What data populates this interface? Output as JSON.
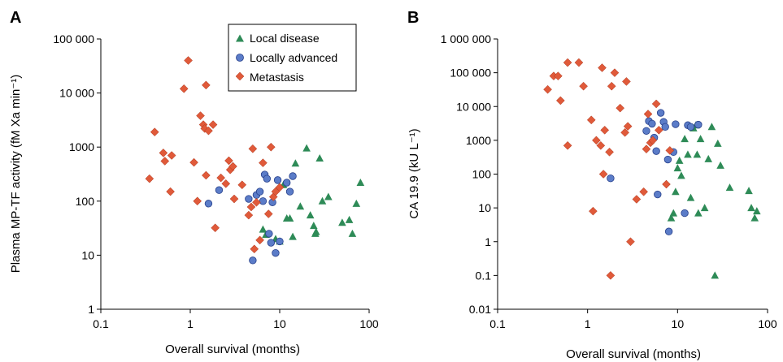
{
  "figure": {
    "panel_letters": [
      "A",
      "B"
    ]
  },
  "styles": {
    "marker_colors": {
      "Local disease": "#2e8b57",
      "Locally advanced": "#5b7cc8",
      "Metastasis": "#e05a3a"
    },
    "marker_shapes": {
      "Local disease": "triangle",
      "Locally advanced": "circle",
      "Metastasis": "diamond"
    }
  },
  "chart_data": [
    {
      "panel": "A",
      "type": "scatter",
      "xlabel": "Overall survival (months)",
      "ylabel": "Plasma MP-TF activity (fM Xa min⁻¹)",
      "xscale": "log",
      "yscale": "log",
      "xlim": [
        0.1,
        100
      ],
      "ylim": [
        1,
        100000
      ],
      "xticks": [
        0.1,
        1,
        10,
        100
      ],
      "xtick_labels": [
        "0.1",
        "1",
        "10",
        "100"
      ],
      "yticks": [
        1,
        10,
        100,
        1000,
        10000,
        100000
      ],
      "ytick_labels": [
        "1",
        "10",
        "100",
        "1000",
        "10 000",
        "100 000"
      ],
      "grid": false,
      "legend": {
        "placement": "top-center",
        "entries": [
          "Local disease",
          "Locally advanced",
          "Metastasis"
        ]
      },
      "series": [
        {
          "name": "Local disease",
          "points": [
            [
              6.5,
              30
            ],
            [
              7,
              24
            ],
            [
              9,
              20
            ],
            [
              10,
              18
            ],
            [
              11,
              200
            ],
            [
              12,
              48
            ],
            [
              13,
              48
            ],
            [
              14,
              22
            ],
            [
              15,
              500
            ],
            [
              17,
              80
            ],
            [
              20,
              950
            ],
            [
              22,
              55
            ],
            [
              24,
              35
            ],
            [
              25,
              25
            ],
            [
              25.5,
              27
            ],
            [
              28,
              620
            ],
            [
              30,
              100
            ],
            [
              35,
              120
            ],
            [
              50,
              40
            ],
            [
              60,
              45
            ],
            [
              65,
              25
            ],
            [
              72,
              90
            ],
            [
              80,
              220
            ]
          ]
        },
        {
          "name": "Locally advanced",
          "points": [
            [
              1.6,
              90
            ],
            [
              2.1,
              160
            ],
            [
              4.5,
              110
            ],
            [
              5,
              8
            ],
            [
              5.5,
              130
            ],
            [
              6,
              150
            ],
            [
              6.5,
              100
            ],
            [
              6.8,
              310
            ],
            [
              7.2,
              260
            ],
            [
              7.6,
              25
            ],
            [
              8,
              17
            ],
            [
              8.3,
              95
            ],
            [
              9,
              11
            ],
            [
              9.5,
              245
            ],
            [
              10,
              18
            ],
            [
              12,
              220
            ],
            [
              13,
              150
            ],
            [
              14,
              290
            ]
          ]
        },
        {
          "name": "Metastasis",
          "points": [
            [
              0.35,
              260
            ],
            [
              0.4,
              1900
            ],
            [
              0.5,
              780
            ],
            [
              0.52,
              550
            ],
            [
              0.6,
              150
            ],
            [
              0.62,
              700
            ],
            [
              0.85,
              12000
            ],
            [
              0.95,
              40000
            ],
            [
              1.1,
              520
            ],
            [
              1.2,
              100
            ],
            [
              1.3,
              3800
            ],
            [
              1.4,
              2600
            ],
            [
              1.45,
              2200
            ],
            [
              1.5,
              14000
            ],
            [
              1.5,
              300
            ],
            [
              1.6,
              2000
            ],
            [
              1.8,
              2600
            ],
            [
              1.9,
              32
            ],
            [
              2.2,
              270
            ],
            [
              2.5,
              210
            ],
            [
              2.7,
              560
            ],
            [
              2.8,
              380
            ],
            [
              3,
              440
            ],
            [
              3.1,
              110
            ],
            [
              3.8,
              200
            ],
            [
              4.5,
              55
            ],
            [
              4.8,
              78
            ],
            [
              5,
              930
            ],
            [
              5.5,
              95
            ],
            [
              5.2,
              13
            ],
            [
              6,
              19
            ],
            [
              6.5,
              510
            ],
            [
              7.5,
              58
            ],
            [
              8,
              1000
            ],
            [
              8.5,
              120
            ],
            [
              9,
              150
            ],
            [
              10,
              180
            ]
          ]
        }
      ]
    },
    {
      "panel": "B",
      "type": "scatter",
      "xlabel": "Overall survival (months)",
      "ylabel": "CA 19.9 (kU L⁻¹)",
      "xscale": "log",
      "yscale": "log",
      "xlim": [
        0.1,
        100
      ],
      "ylim": [
        0.01,
        1000000
      ],
      "xticks": [
        0.1,
        1,
        10,
        100
      ],
      "xtick_labels": [
        "0.1",
        "1",
        "10",
        "100"
      ],
      "yticks": [
        0.01,
        0.1,
        1,
        10,
        100,
        1000,
        10000,
        100000,
        1000000
      ],
      "ytick_labels": [
        "0.01",
        "0.1",
        "1",
        "10",
        "100",
        "1000",
        "10 000",
        "100 000",
        "1 000 000"
      ],
      "grid": false,
      "series": [
        {
          "name": "Local disease",
          "points": [
            [
              8.5,
              5
            ],
            [
              9,
              7
            ],
            [
              9.5,
              30
            ],
            [
              10,
              150
            ],
            [
              10.5,
              250
            ],
            [
              11,
              90
            ],
            [
              12,
              1100
            ],
            [
              13,
              380
            ],
            [
              14,
              20
            ],
            [
              15,
              2300
            ],
            [
              16,
              2800
            ],
            [
              16.5,
              380
            ],
            [
              17,
              7
            ],
            [
              18,
              1100
            ],
            [
              20,
              10
            ],
            [
              22,
              280
            ],
            [
              24,
              2500
            ],
            [
              26,
              0.1
            ],
            [
              28,
              800
            ],
            [
              30,
              180
            ],
            [
              38,
              40
            ],
            [
              62,
              32
            ],
            [
              66,
              10
            ],
            [
              72,
              5
            ],
            [
              76,
              8
            ]
          ]
        },
        {
          "name": "Locally advanced",
          "points": [
            [
              1.8,
              75
            ],
            [
              4.5,
              1900
            ],
            [
              4.8,
              3700
            ],
            [
              5.2,
              3100
            ],
            [
              5.5,
              1200
            ],
            [
              5.8,
              480
            ],
            [
              6,
              25
            ],
            [
              6.5,
              6500
            ],
            [
              7,
              3500
            ],
            [
              7.3,
              2500
            ],
            [
              7.8,
              270
            ],
            [
              8,
              2
            ],
            [
              9,
              450
            ],
            [
              9.5,
              3000
            ],
            [
              12,
              7
            ],
            [
              13,
              2800
            ],
            [
              14,
              2500
            ],
            [
              17,
              2900
            ]
          ]
        },
        {
          "name": "Metastasis",
          "points": [
            [
              0.36,
              32000
            ],
            [
              0.42,
              80000
            ],
            [
              0.47,
              80000
            ],
            [
              0.5,
              15000
            ],
            [
              0.6,
              700
            ],
            [
              0.6,
              200000
            ],
            [
              0.8,
              200000
            ],
            [
              0.9,
              40000
            ],
            [
              1.1,
              4000
            ],
            [
              1.15,
              8
            ],
            [
              1.25,
              1000
            ],
            [
              1.4,
              700
            ],
            [
              1.45,
              140000
            ],
            [
              1.5,
              100
            ],
            [
              1.55,
              2000
            ],
            [
              1.75,
              450
            ],
            [
              1.8,
              0.1
            ],
            [
              1.85,
              40000
            ],
            [
              2,
              100000
            ],
            [
              2.3,
              9000
            ],
            [
              2.6,
              1700
            ],
            [
              2.7,
              55000
            ],
            [
              2.8,
              2600
            ],
            [
              3,
              1
            ],
            [
              3.5,
              18
            ],
            [
              4.2,
              30
            ],
            [
              4.5,
              550
            ],
            [
              4.7,
              6000
            ],
            [
              5,
              850
            ],
            [
              5.3,
              1000
            ],
            [
              5.8,
              12000
            ],
            [
              6.2,
              2000
            ],
            [
              7.5,
              50
            ],
            [
              8.2,
              500
            ]
          ]
        }
      ]
    }
  ]
}
